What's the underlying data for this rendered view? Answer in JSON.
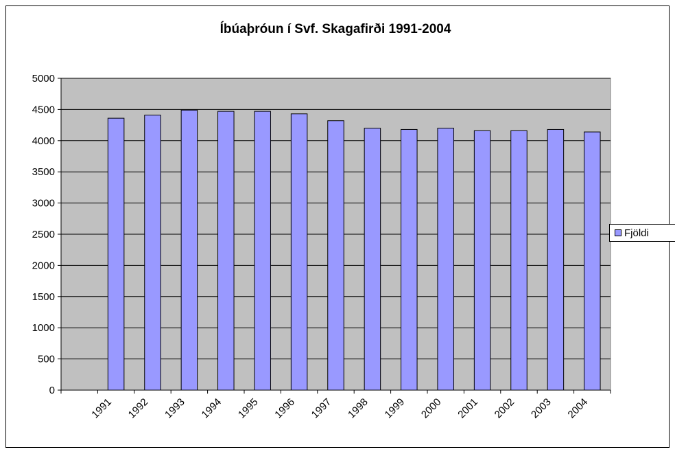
{
  "chart_data": {
    "type": "bar",
    "title": "Íbúaþróun í Svf. Skagafirði 1991-2004",
    "categories": [
      null,
      "1991",
      "1992",
      "1993",
      "1994",
      "1995",
      "1996",
      "1997",
      "1998",
      "1999",
      "2000",
      "2001",
      "2002",
      "2003",
      "2004"
    ],
    "series": [
      {
        "name": "Fjöldi",
        "color": "#9999ff",
        "values": [
          null,
          4360,
          4410,
          4490,
          4470,
          4470,
          4430,
          4320,
          4200,
          4180,
          4200,
          4160,
          4160,
          4180,
          4140
        ]
      }
    ],
    "ylim": [
      0,
      5000
    ],
    "yticks": [
      0,
      500,
      1000,
      1500,
      2000,
      2500,
      3000,
      3500,
      4000,
      4500,
      5000
    ],
    "grid": true,
    "legend": "right"
  }
}
